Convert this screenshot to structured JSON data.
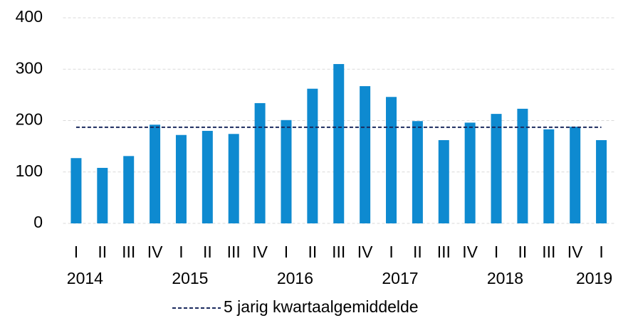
{
  "chart_data": {
    "type": "bar",
    "categories": [
      "I",
      "II",
      "III",
      "IV",
      "I",
      "II",
      "III",
      "IV",
      "I",
      "II",
      "III",
      "IV",
      "I",
      "II",
      "III",
      "IV",
      "I",
      "II",
      "III",
      "IV",
      "I"
    ],
    "years": [
      "2014",
      "2015",
      "2016",
      "2017",
      "2018",
      "2019"
    ],
    "values": [
      127,
      108,
      131,
      192,
      172,
      180,
      174,
      234,
      201,
      262,
      310,
      267,
      246,
      199,
      162,
      196,
      213,
      223,
      183,
      188,
      162
    ],
    "color": "#0e8ad0",
    "average": {
      "name": "5 jarig kwartaalgemiddelde",
      "value": 187,
      "color": "#1b2a5e"
    },
    "ylim": [
      0,
      400
    ],
    "yticks": [
      0,
      100,
      200,
      300,
      400
    ],
    "grid": true
  }
}
